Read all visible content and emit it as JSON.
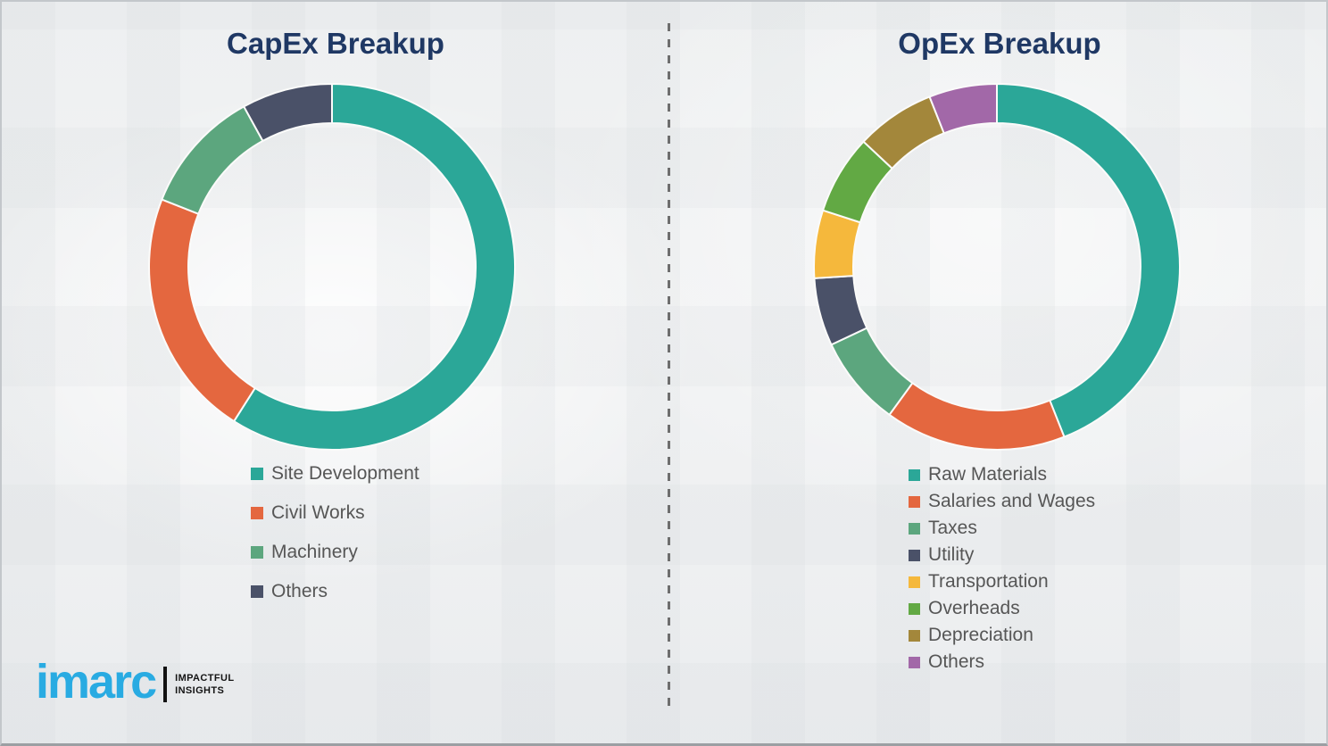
{
  "page": {
    "brand": {
      "logo_text": "imarc",
      "tagline_line1": "IMPACTFUL",
      "tagline_line2": "INSIGHTS",
      "logo_color": "#29ABE2"
    },
    "divider_color": "#6E6E6E",
    "title_color": "#1F3864",
    "legend_text_color": "#565656"
  },
  "chart_data": [
    {
      "type": "pie",
      "subtype": "donut",
      "title": "CapEx Breakup",
      "categories": [
        "Site Development",
        "Civil Works",
        "Machinery",
        "Others"
      ],
      "values": [
        59,
        22,
        11,
        8
      ],
      "values_note": "percent, estimated from arc angles (no numeric labels shown)",
      "colors": [
        "#2BA798",
        "#E4673F",
        "#5CA67E",
        "#4A5168"
      ],
      "start_angle_deg": 0,
      "direction": "clockwise",
      "legend_position": "below-left",
      "outer_radius": 205,
      "inner_radius": 161
    },
    {
      "type": "pie",
      "subtype": "donut",
      "title": "OpEx Breakup",
      "categories": [
        "Raw Materials",
        "Salaries and Wages",
        "Taxes",
        "Utility",
        "Transportation",
        "Overheads",
        "Depreciation",
        "Others"
      ],
      "values": [
        44,
        16,
        8,
        6,
        6,
        7,
        7,
        6
      ],
      "values_note": "percent, estimated from arc angles (no numeric labels shown)",
      "colors": [
        "#2BA798",
        "#E4673F",
        "#5CA67E",
        "#4A5168",
        "#F5B83C",
        "#62A944",
        "#A3873B",
        "#A268A8"
      ],
      "start_angle_deg": 0,
      "direction": "clockwise",
      "legend_position": "below-left",
      "outer_radius": 205,
      "inner_radius": 161
    }
  ]
}
